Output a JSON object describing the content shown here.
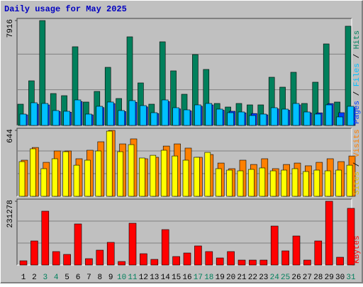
{
  "chart_data": [
    {
      "type": "bar",
      "title": "Daily usage for May 2025",
      "ylim": [
        0,
        7916
      ],
      "yticks": [
        7916
      ],
      "legend_separator": " / ",
      "series": [
        {
          "name": "Pages",
          "color": "#0040FF",
          "values": [
            800,
            1600,
            1550,
            1050,
            1000,
            1800,
            800,
            1350,
            1650,
            1050,
            1750,
            1400,
            900,
            1800,
            1250,
            1100,
            1450,
            1550,
            1150,
            1070,
            950,
            900,
            800,
            1250,
            1150,
            1550,
            950,
            950,
            1650,
            963,
            1350
          ]
        },
        {
          "name": "Files",
          "color": "#00C0FF",
          "values": [
            856,
            1712,
            1659,
            1124,
            1070,
            1926,
            856,
            1445,
            1766,
            1124,
            1873,
            1498,
            963,
            1926,
            1338,
            1177,
            1552,
            1659,
            1231,
            963,
            1017,
            749,
            856,
            1338,
            1231,
            1659,
            1017,
            856,
            1552,
            642,
            1445
          ]
        },
        {
          "name": "Hits",
          "color": "#00805C",
          "values": [
            1605,
            3370,
            7916,
            2408,
            2247,
            5939,
            1766,
            2568,
            4387,
            2033,
            6688,
            3210,
            1605,
            6313,
            4120,
            2354,
            5350,
            4227,
            1659,
            1391,
            1659,
            1552,
            1552,
            3638,
            2889,
            4013,
            1659,
            3264,
            6153,
            1766,
            7490
          ]
        }
      ]
    },
    {
      "type": "bar",
      "ylim": [
        0,
        644
      ],
      "yticks": [
        644
      ],
      "legend_separator": " / ",
      "series": [
        {
          "name": "Sites",
          "color": "#FFFF00",
          "values": [
            339,
            464,
            270,
            367,
            436,
            304,
            353,
            443,
            637,
            436,
            505,
            374,
            401,
            450,
            394,
            353,
            381,
            429,
            270,
            256,
            249,
            263,
            277,
            249,
            256,
            270,
            242,
            256,
            249,
            256,
            304
          ]
        },
        {
          "name": "Visits",
          "color": "#FF8000",
          "values": [
            353,
            477,
            332,
            443,
            443,
            367,
            450,
            533,
            644,
            512,
            561,
            367,
            381,
            491,
            512,
            471,
            381,
            408,
            325,
            270,
            353,
            311,
            367,
            270,
            311,
            325,
            298,
            332,
            367,
            339,
            394
          ]
        }
      ]
    },
    {
      "type": "bar",
      "ylim": [
        0,
        231278
      ],
      "yticks": [
        231278
      ],
      "series": [
        {
          "name": "KBytes",
          "color": "#FF0000",
          "values": [
            15420,
            87380,
            195320,
            48830,
            38550,
            149060,
            23130,
            53970,
            82240,
            12850,
            151630,
            41120,
            20560,
            128500,
            30840,
            43690,
            69390,
            48830,
            25700,
            48830,
            17990,
            17990,
            17990,
            141350,
            51400,
            105370,
            17990,
            87380,
            231278,
            28270,
            205600
          ]
        }
      ],
      "categories": [
        "1",
        "2",
        "3",
        "4",
        "5",
        "6",
        "7",
        "8",
        "9",
        "10",
        "11",
        "12",
        "13",
        "14",
        "15",
        "16",
        "17",
        "18",
        "19",
        "20",
        "21",
        "22",
        "23",
        "24",
        "25",
        "26",
        "27",
        "28",
        "29",
        "30",
        "31"
      ],
      "category_colors": [
        "#000000",
        "#000000",
        "#00805C",
        "#00805C",
        "#000000",
        "#000000",
        "#000000",
        "#000000",
        "#000000",
        "#00805C",
        "#00805C",
        "#000000",
        "#000000",
        "#000000",
        "#000000",
        "#000000",
        "#00805C",
        "#00805C",
        "#000000",
        "#000000",
        "#000000",
        "#000000",
        "#000000",
        "#00805C",
        "#00805C",
        "#000000",
        "#000000",
        "#000000",
        "#000000",
        "#000000",
        "#00805C"
      ]
    }
  ]
}
